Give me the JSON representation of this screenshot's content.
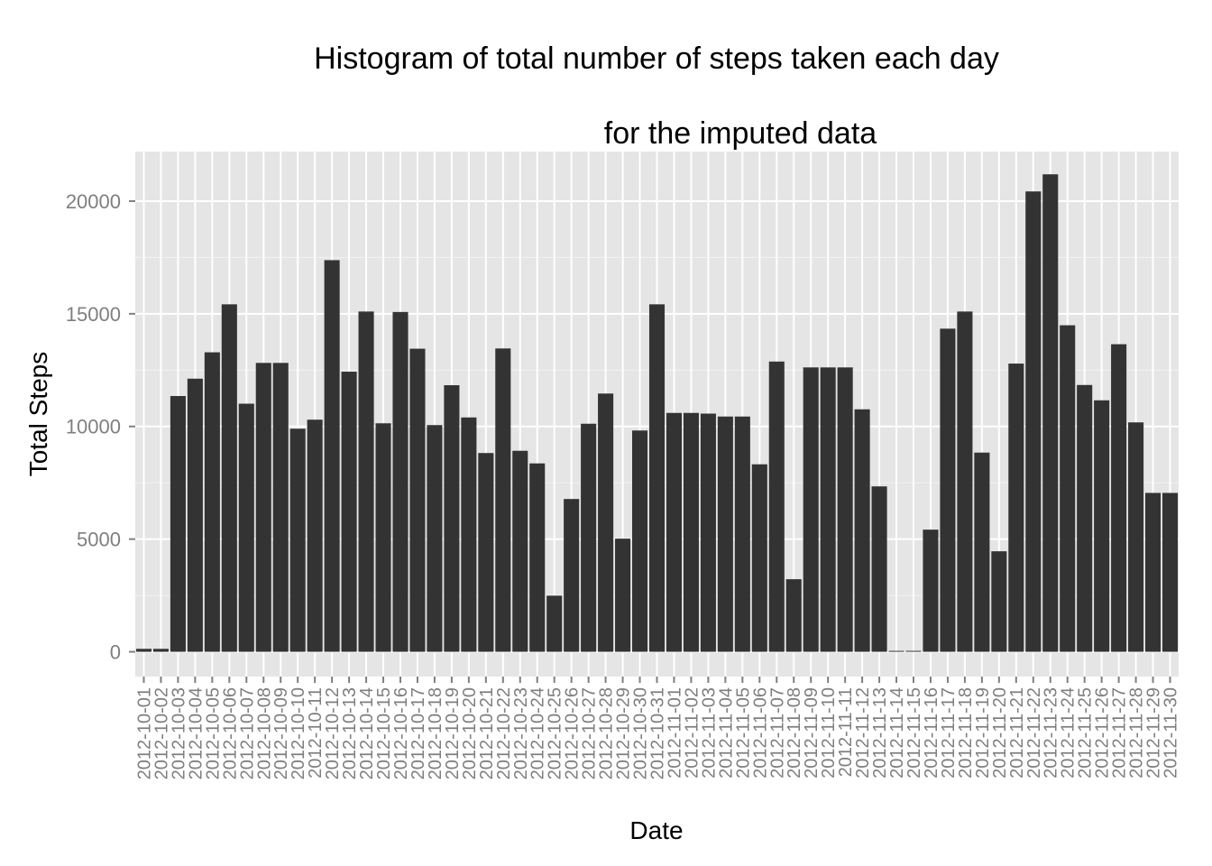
{
  "chart_data": {
    "type": "bar",
    "title_line1": "Histogram of total number of steps taken each day",
    "title_line2": "for the imputed data",
    "xlabel": "Date",
    "ylabel": "Total Steps",
    "ylim": [
      -1100,
      22200
    ],
    "yticks": [
      0,
      5000,
      10000,
      15000,
      20000
    ],
    "grid": true,
    "bar_color": "#333333",
    "panel_color": "#e5e5e5",
    "grid_color": "#ffffff",
    "categories": [
      "2012-10-01",
      "2012-10-02",
      "2012-10-03",
      "2012-10-04",
      "2012-10-05",
      "2012-10-06",
      "2012-10-07",
      "2012-10-08",
      "2012-10-09",
      "2012-10-10",
      "2012-10-11",
      "2012-10-12",
      "2012-10-13",
      "2012-10-14",
      "2012-10-15",
      "2012-10-16",
      "2012-10-17",
      "2012-10-18",
      "2012-10-19",
      "2012-10-20",
      "2012-10-21",
      "2012-10-22",
      "2012-10-23",
      "2012-10-24",
      "2012-10-25",
      "2012-10-26",
      "2012-10-27",
      "2012-10-28",
      "2012-10-29",
      "2012-10-30",
      "2012-10-31",
      "2012-11-01",
      "2012-11-02",
      "2012-11-03",
      "2012-11-04",
      "2012-11-05",
      "2012-11-06",
      "2012-11-07",
      "2012-11-08",
      "2012-11-09",
      "2012-11-10",
      "2012-11-11",
      "2012-11-12",
      "2012-11-13",
      "2012-11-14",
      "2012-11-15",
      "2012-11-16",
      "2012-11-17",
      "2012-11-18",
      "2012-11-19",
      "2012-11-20",
      "2012-11-21",
      "2012-11-22",
      "2012-11-23",
      "2012-11-24",
      "2012-11-25",
      "2012-11-26",
      "2012-11-27",
      "2012-11-28",
      "2012-11-29",
      "2012-11-30"
    ],
    "values": [
      130,
      130,
      11350,
      12120,
      13290,
      15420,
      11010,
      12820,
      12820,
      9900,
      10300,
      17380,
      12430,
      15100,
      10140,
      15080,
      13450,
      10060,
      11830,
      10400,
      8820,
      13460,
      8920,
      8360,
      2490,
      6780,
      10120,
      11460,
      5020,
      9820,
      15420,
      10600,
      10600,
      10570,
      10440,
      10440,
      8320,
      12880,
      3220,
      12620,
      12620,
      12620,
      10760,
      7340,
      40,
      40,
      5420,
      14340,
      15100,
      8840,
      4460,
      12790,
      20430,
      21190,
      14490,
      11840,
      11160,
      13650,
      10180,
      7050,
      7050
    ]
  }
}
